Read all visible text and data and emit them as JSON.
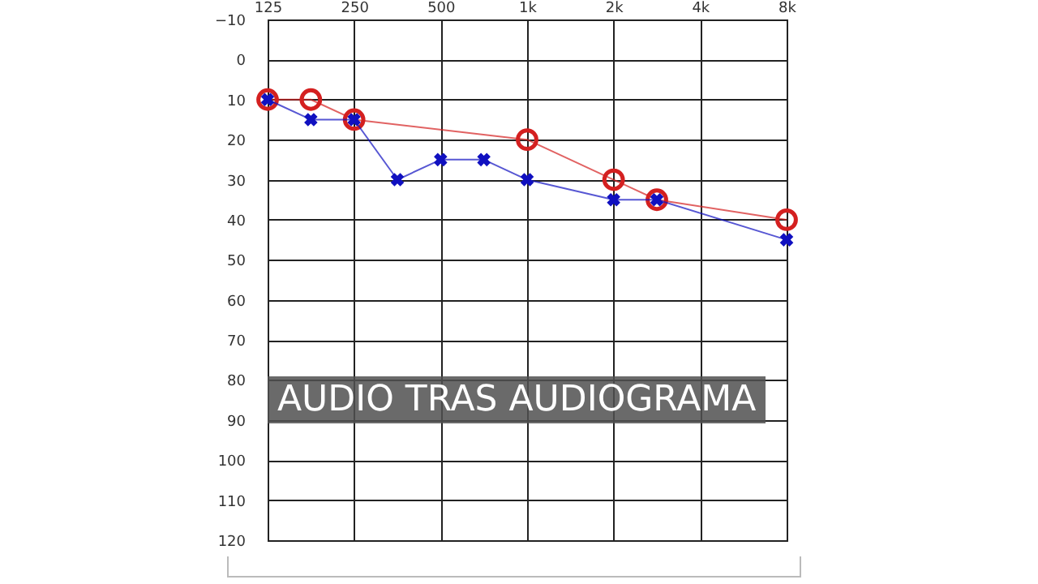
{
  "chart_data": {
    "type": "line",
    "categories": [
      "125",
      null,
      "250",
      null,
      "500",
      null,
      "1k",
      null,
      "2k",
      null,
      "4k",
      null,
      "8k"
    ],
    "series": [
      {
        "color": "#d42020",
        "marker": "circle",
        "values": [
          10,
          10,
          15,
          null,
          null,
          null,
          20,
          null,
          30,
          35,
          null,
          null,
          40
        ]
      },
      {
        "color": "#1010c0",
        "marker": "cross",
        "values": [
          10,
          15,
          15,
          30,
          25,
          25,
          30,
          null,
          35,
          35,
          null,
          null,
          45
        ]
      }
    ],
    "ylim": [
      120,
      -10
    ],
    "yticks": [
      -10,
      0,
      10,
      20,
      30,
      40,
      50,
      60,
      70,
      80,
      90,
      100,
      110,
      120
    ],
    "grid": true,
    "annotations": [
      "AUDIO TRAS AUDIOGRAMA"
    ]
  }
}
